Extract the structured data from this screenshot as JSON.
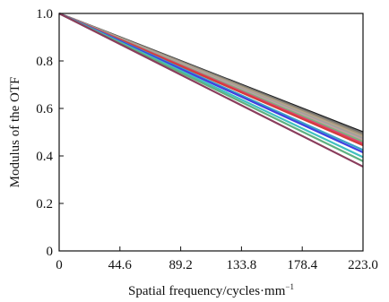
{
  "chart_data": {
    "type": "line",
    "xlabel": "Spatial frequency/cycles·mm",
    "xlabel_sup": "−1",
    "ylabel": "Modulus of the OTF",
    "xlim": [
      0,
      223.0
    ],
    "ylim": [
      0,
      1.0
    ],
    "x_ticks": [
      0,
      44.6,
      89.2,
      133.8,
      178.4,
      223.0
    ],
    "x_tick_labels": [
      "0",
      "44.6",
      "89.2",
      "133.8",
      "178.4",
      "223.0"
    ],
    "y_ticks": [
      0,
      0.2,
      0.4,
      0.6,
      0.8,
      1.0
    ],
    "y_tick_labels": [
      "0",
      "0.2",
      "0.4",
      "0.6",
      "0.8",
      "1.0"
    ],
    "grid": false,
    "x": [
      0,
      223.0
    ],
    "series": [
      {
        "color": "#1a1a1a",
        "values": [
          1.0,
          0.5
        ]
      },
      {
        "color": "#6e6e6e",
        "values": [
          1.0,
          0.495
        ]
      },
      {
        "color": "#9a8f7a",
        "values": [
          1.0,
          0.488
        ]
      },
      {
        "color": "#b8a58a",
        "values": [
          1.0,
          0.481
        ]
      },
      {
        "color": "#a0a0a0",
        "values": [
          1.0,
          0.474
        ]
      },
      {
        "color": "#c2a0a0",
        "values": [
          1.0,
          0.467
        ]
      },
      {
        "color": "#7fb07f",
        "values": [
          1.0,
          0.46
        ]
      },
      {
        "color": "#e0406e",
        "values": [
          1.0,
          0.452
        ]
      },
      {
        "color": "#d43c3c",
        "values": [
          1.0,
          0.445
        ]
      },
      {
        "color": "#3aa0c8",
        "values": [
          1.0,
          0.425
        ]
      },
      {
        "color": "#4040e0",
        "values": [
          1.0,
          0.415
        ]
      },
      {
        "color": "#40c0c0",
        "values": [
          1.0,
          0.395
        ]
      },
      {
        "color": "#60b080",
        "values": [
          1.0,
          0.378
        ]
      },
      {
        "color": "#8a3d5c",
        "values": [
          1.0,
          0.355
        ]
      }
    ]
  }
}
